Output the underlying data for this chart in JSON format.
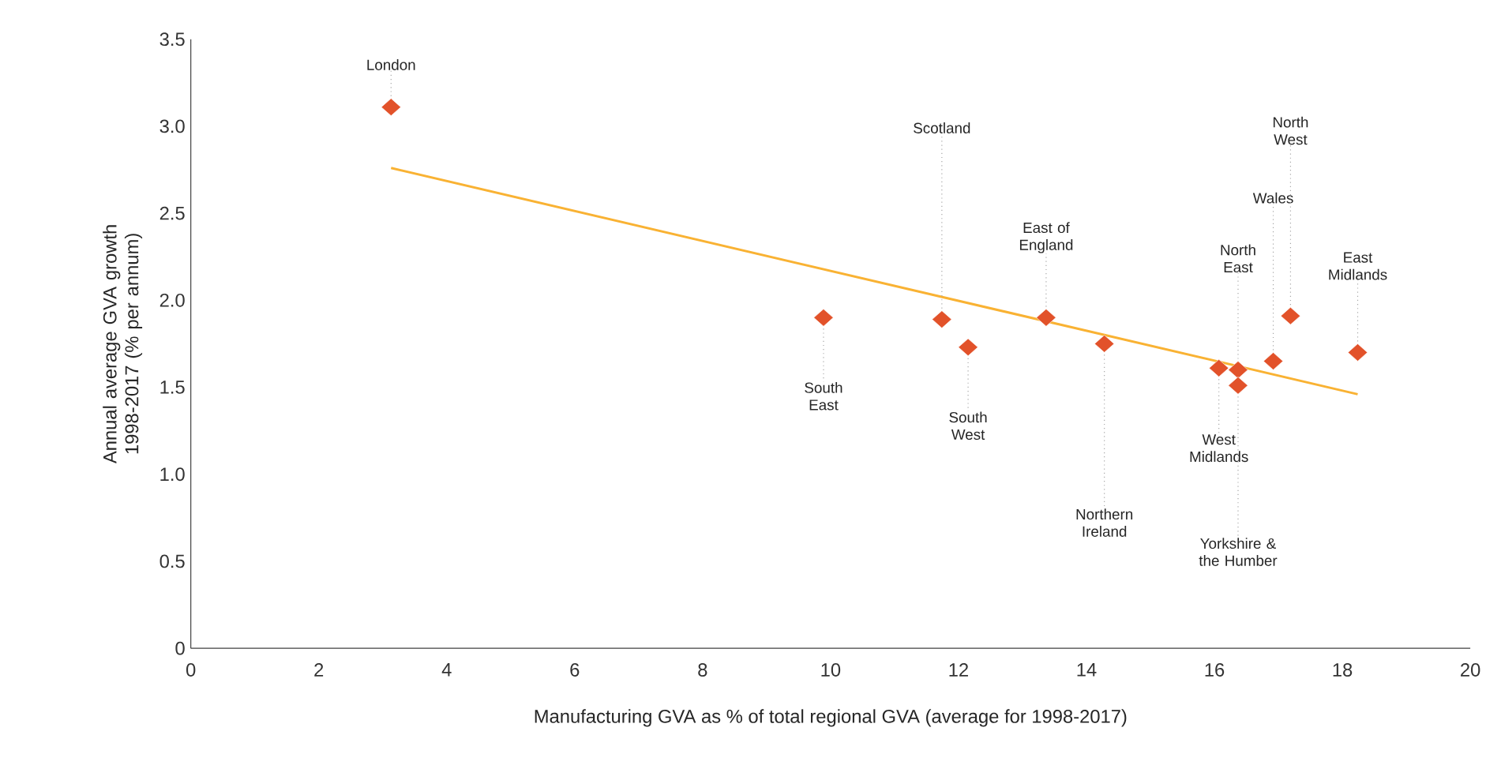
{
  "chart_data": {
    "type": "scatter",
    "xlabel": "Manufacturing GVA as % of total regional GVA (average for 1998-2017)",
    "ylabel": "Annual average GVA growth 1998-2017 (% per annum)",
    "xlim": [
      0,
      20
    ],
    "ylim": [
      0,
      3.5
    ],
    "xticks": [
      0,
      2,
      4,
      6,
      8,
      10,
      12,
      14,
      16,
      18,
      20
    ],
    "yticks": [
      0,
      0.5,
      {
        "value": 1,
        "label": "1.0"
      },
      1.5,
      {
        "value": 2,
        "label": "2.0"
      },
      2.5,
      {
        "value": 3,
        "label": "3.0"
      },
      3.5
    ],
    "series": [
      {
        "color": "#e2522a",
        "marker": "diamond",
        "x": [
          3.13,
          9.89,
          11.74,
          12.15,
          13.37,
          14.28,
          16.07,
          16.37,
          16.37,
          16.92,
          17.19,
          18.24
        ],
        "values": [
          3.11,
          1.9,
          1.89,
          1.73,
          1.9,
          1.75,
          1.61,
          1.6,
          1.51,
          1.65,
          1.91,
          1.7
        ]
      },
      {
        "type": "line",
        "color": "#f9b233",
        "marker": "none",
        "x": [
          3.13,
          18.24
        ],
        "values": [
          2.76,
          1.46
        ]
      }
    ],
    "annotations": [
      {
        "text": "London",
        "x": 3.13,
        "y": 3.11
      },
      {
        "text": "South East",
        "x": 9.89,
        "y": 1.9
      },
      {
        "text": "Scotland",
        "x": 11.74,
        "y": 1.89
      },
      {
        "text": "South West",
        "x": 12.15,
        "y": 1.73
      },
      {
        "text": "East of England",
        "x": 13.37,
        "y": 1.9
      },
      {
        "text": "Northern Ireland",
        "x": 14.28,
        "y": 1.75
      },
      {
        "text": "West Midlands",
        "x": 16.07,
        "y": 1.61
      },
      {
        "text": "North East",
        "x": 16.37,
        "y": 1.6
      },
      {
        "text": "Yorkshire & the Humber",
        "x": 16.37,
        "y": 1.51
      },
      {
        "text": "Wales",
        "x": 16.92,
        "y": 1.65
      },
      {
        "text": "North West",
        "x": 17.19,
        "y": 1.91
      },
      {
        "text": "East Midlands",
        "x": 18.24,
        "y": 1.7
      }
    ]
  }
}
